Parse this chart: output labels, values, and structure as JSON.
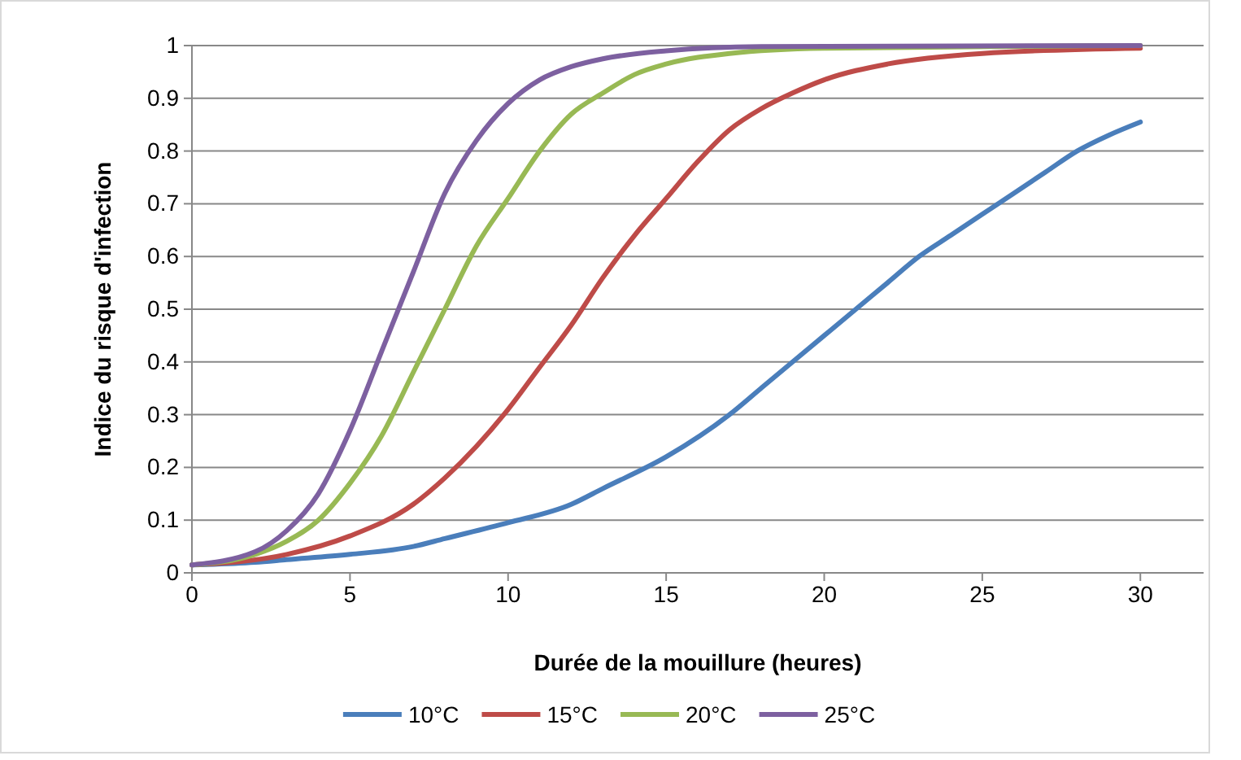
{
  "chart_data": {
    "type": "line",
    "xlabel": "Durée de la mouillure (heures)",
    "ylabel": "Indice du risque d'infection",
    "xlim": [
      0,
      32
    ],
    "xticks": [
      0,
      5,
      10,
      15,
      20,
      25,
      30
    ],
    "ylim": [
      0,
      1
    ],
    "yticks": [
      0,
      0.1,
      0.2,
      0.3,
      0.4,
      0.5,
      0.6,
      0.7,
      0.8,
      0.9,
      1
    ],
    "grid": "y",
    "legend": "bottom",
    "marker": "none",
    "line_style": "solid",
    "series": [
      {
        "name": "10°C",
        "color": "#4a7ebb",
        "x": [
          0,
          2,
          3,
          5,
          7,
          8,
          10,
          12,
          13,
          15,
          17,
          18,
          19,
          20,
          21,
          22,
          23,
          24,
          25,
          26,
          27,
          28,
          29,
          30
        ],
        "values": [
          0.015,
          0.02,
          0.025,
          0.035,
          0.05,
          0.065,
          0.095,
          0.13,
          0.16,
          0.22,
          0.3,
          0.35,
          0.4,
          0.45,
          0.5,
          0.55,
          0.6,
          0.64,
          0.68,
          0.72,
          0.76,
          0.8,
          0.83,
          0.855
        ]
      },
      {
        "name": "15°C",
        "color": "#be4b48",
        "x": [
          0,
          3,
          5,
          7,
          8,
          9,
          10,
          11,
          12,
          13,
          14,
          15,
          16,
          17,
          18,
          19,
          20,
          22,
          25,
          30
        ],
        "values": [
          0.015,
          0.035,
          0.07,
          0.13,
          0.18,
          0.24,
          0.31,
          0.39,
          0.47,
          0.56,
          0.64,
          0.71,
          0.78,
          0.84,
          0.88,
          0.91,
          0.935,
          0.965,
          0.985,
          0.995
        ]
      },
      {
        "name": "20°C",
        "color": "#98b954",
        "x": [
          0,
          2,
          3,
          4,
          5,
          6,
          7,
          8,
          9,
          10,
          11,
          12,
          13,
          14,
          15,
          17,
          20,
          30
        ],
        "values": [
          0.015,
          0.035,
          0.06,
          0.1,
          0.17,
          0.26,
          0.38,
          0.5,
          0.62,
          0.71,
          0.8,
          0.87,
          0.91,
          0.945,
          0.965,
          0.985,
          0.995,
          1
        ]
      },
      {
        "name": "25°C",
        "color": "#7d60a0",
        "x": [
          0,
          2,
          3,
          4,
          5,
          6,
          7,
          8,
          9,
          10,
          11,
          12,
          13,
          15,
          18,
          30
        ],
        "values": [
          0.015,
          0.04,
          0.08,
          0.15,
          0.27,
          0.42,
          0.57,
          0.72,
          0.82,
          0.89,
          0.935,
          0.96,
          0.975,
          0.99,
          0.998,
          1
        ]
      }
    ]
  }
}
